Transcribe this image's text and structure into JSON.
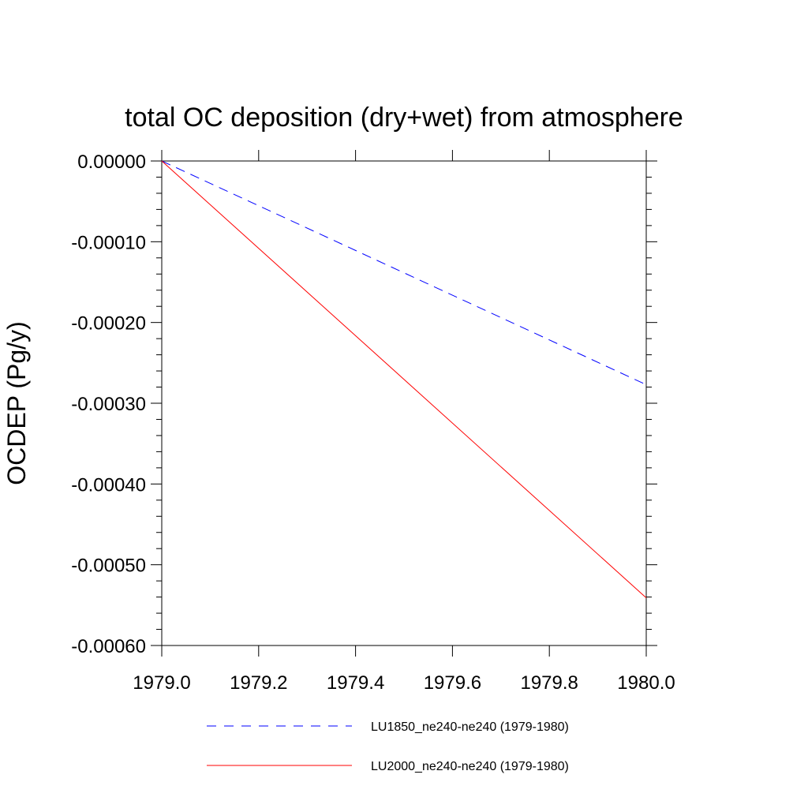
{
  "chart_data": {
    "type": "line",
    "title": "total OC deposition (dry+wet) from atmosphere",
    "xlabel": "",
    "ylabel": "OCDEP  (Pg/y)",
    "xlim": [
      1979.0,
      1980.0
    ],
    "ylim": [
      -0.0006,
      0.0
    ],
    "x_ticks": [
      1979.0,
      1979.2,
      1979.4,
      1979.6,
      1979.8,
      1980.0
    ],
    "x_tick_labels": [
      "1979.0",
      "1979.2",
      "1979.4",
      "1979.6",
      "1979.8",
      "1980.0"
    ],
    "y_ticks": [
      0.0,
      -0.0001,
      -0.0002,
      -0.0003,
      -0.0004,
      -0.0005,
      -0.0006
    ],
    "y_tick_labels": [
      "0.00000",
      "-0.00010",
      "-0.00020",
      "-0.00030",
      "-0.00040",
      "-0.00050",
      "-0.00060"
    ],
    "grid": false,
    "legend_position": "bottom",
    "series": [
      {
        "name": "LU1850_ne240-ne240 (1979-1980)",
        "color": "#0000ff",
        "dash": "dashed",
        "x": [
          1979.0,
          1980.0
        ],
        "y": [
          0.0,
          -0.000277
        ]
      },
      {
        "name": "LU2000_ne240-ne240 (1979-1980)",
        "color": "#ff0000",
        "dash": "solid",
        "x": [
          1979.0,
          1980.0
        ],
        "y": [
          0.0,
          -0.000541
        ]
      }
    ]
  }
}
